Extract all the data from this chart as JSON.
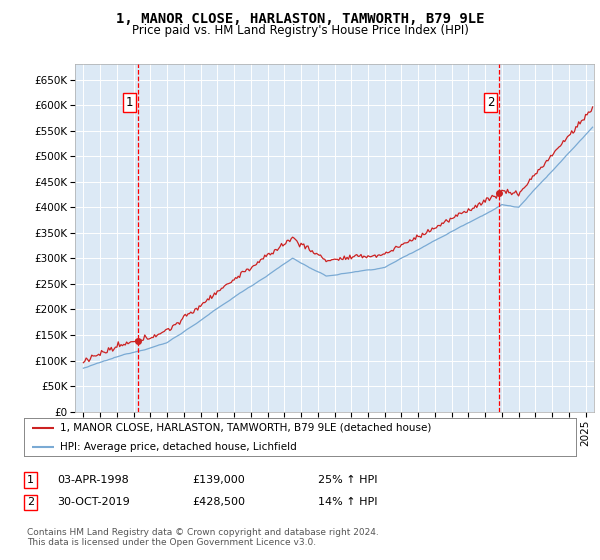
{
  "title": "1, MANOR CLOSE, HARLASTON, TAMWORTH, B79 9LE",
  "subtitle": "Price paid vs. HM Land Registry's House Price Index (HPI)",
  "bg_color": "#dce9f5",
  "grid_color": "#ffffff",
  "hpi_color": "#7aaad4",
  "price_color": "#cc2222",
  "ylim": [
    0,
    680000
  ],
  "yticks": [
    0,
    50000,
    100000,
    150000,
    200000,
    250000,
    300000,
    350000,
    400000,
    450000,
    500000,
    550000,
    600000,
    650000
  ],
  "ytick_labels": [
    "£0",
    "£50K",
    "£100K",
    "£150K",
    "£200K",
    "£250K",
    "£300K",
    "£350K",
    "£400K",
    "£450K",
    "£500K",
    "£550K",
    "£600K",
    "£650K"
  ],
  "sale1_date": 1998.25,
  "sale1_price": 139000,
  "sale1_label": "1",
  "sale2_date": 2019.83,
  "sale2_price": 428500,
  "sale2_label": "2",
  "legend_line1": "1, MANOR CLOSE, HARLASTON, TAMWORTH, B79 9LE (detached house)",
  "legend_line2": "HPI: Average price, detached house, Lichfield",
  "annotation1_date": "03-APR-1998",
  "annotation1_price": "£139,000",
  "annotation1_hpi": "25% ↑ HPI",
  "annotation2_date": "30-OCT-2019",
  "annotation2_price": "£428,500",
  "annotation2_hpi": "14% ↑ HPI",
  "footnote": "Contains HM Land Registry data © Crown copyright and database right 2024.\nThis data is licensed under the Open Government Licence v3.0.",
  "xmin": 1994.5,
  "xmax": 2025.5
}
